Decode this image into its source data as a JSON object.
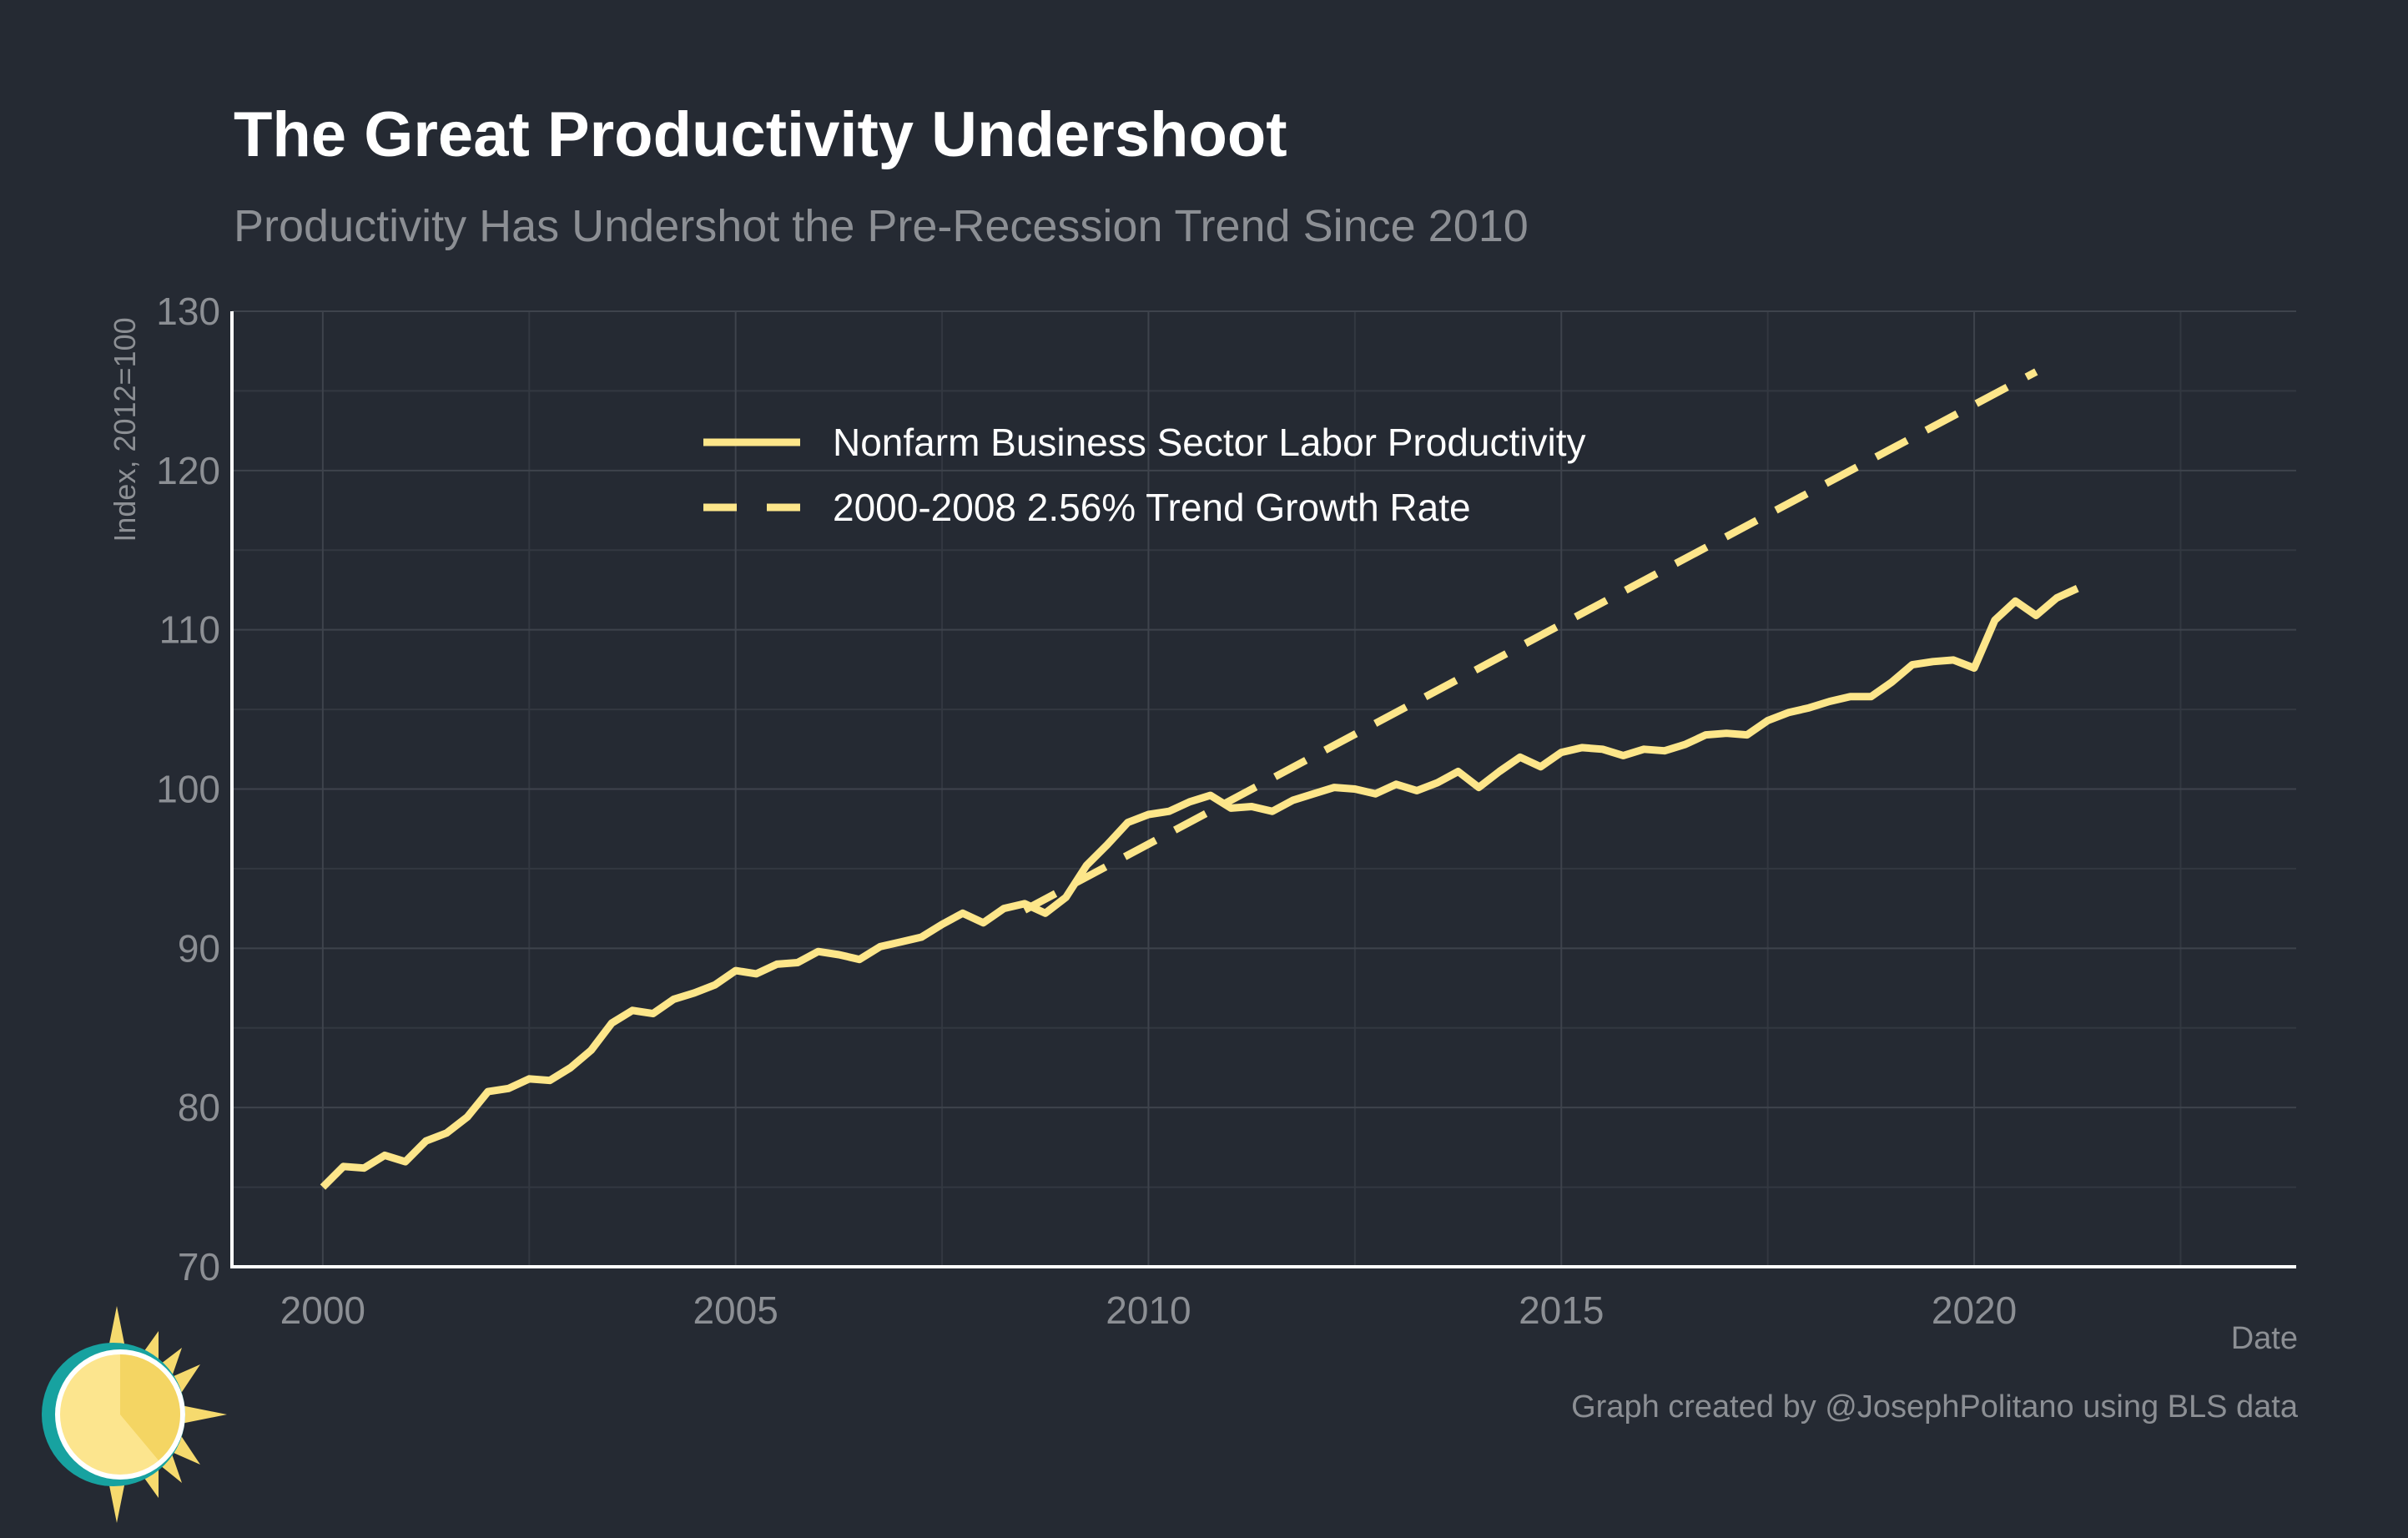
{
  "title": "The Great Productivity Undershoot",
  "subtitle": "Productivity Has Undershot the Pre-Recession Trend Since 2010",
  "caption": "Graph created by @JosephPolitano using BLS data",
  "colors": {
    "background": "#252a33",
    "series": "#fde68a",
    "grid": "#3e434c",
    "axis": "#ffffff",
    "text_muted": "#8c8f94"
  },
  "chart_data": {
    "type": "line",
    "xlabel": "Date",
    "ylabel": "Index, 2012=100",
    "xlim": [
      1998.9,
      2023.9
    ],
    "ylim": [
      70,
      130
    ],
    "x_ticks": [
      2000,
      2005,
      2010,
      2015,
      2020
    ],
    "x_tick_labels": [
      "2000",
      "2005",
      "2010",
      "2015",
      "2020"
    ],
    "y_ticks": [
      70,
      80,
      90,
      100,
      110,
      120,
      130
    ],
    "y_tick_labels": [
      "70",
      "80",
      "90",
      "100",
      "110",
      "120",
      "130"
    ],
    "grid": true,
    "legend_position": "top-left",
    "series": [
      {
        "name": "Nonfarm Business Sector Labor Productivity",
        "style": "solid",
        "x": [
          2000.0,
          2000.25,
          2000.5,
          2000.75,
          2001.0,
          2001.25,
          2001.5,
          2001.75,
          2002.0,
          2002.25,
          2002.5,
          2002.75,
          2003.0,
          2003.25,
          2003.5,
          2003.75,
          2004.0,
          2004.25,
          2004.5,
          2004.75,
          2005.0,
          2005.25,
          2005.5,
          2005.75,
          2006.0,
          2006.25,
          2006.5,
          2006.75,
          2007.0,
          2007.25,
          2007.5,
          2007.75,
          2008.0,
          2008.25,
          2008.5,
          2008.75,
          2009.0,
          2009.25,
          2009.5,
          2009.75,
          2010.0,
          2010.25,
          2010.5,
          2010.75,
          2011.0,
          2011.25,
          2011.5,
          2011.75,
          2012.0,
          2012.25,
          2012.5,
          2012.75,
          2013.0,
          2013.25,
          2013.5,
          2013.75,
          2014.0,
          2014.25,
          2014.5,
          2014.75,
          2015.0,
          2015.25,
          2015.5,
          2015.75,
          2016.0,
          2016.25,
          2016.5,
          2016.75,
          2017.0,
          2017.25,
          2017.5,
          2017.75,
          2018.0,
          2018.25,
          2018.5,
          2018.75,
          2019.0,
          2019.25,
          2019.5,
          2019.75,
          2020.0,
          2020.25,
          2020.5,
          2020.75,
          2021.0,
          2021.25
        ],
        "values": [
          75.0,
          76.3,
          76.2,
          77.0,
          76.6,
          77.9,
          78.4,
          79.4,
          81.0,
          81.2,
          81.8,
          81.7,
          82.5,
          83.6,
          85.3,
          86.1,
          85.9,
          86.8,
          87.2,
          87.7,
          88.6,
          88.4,
          89.0,
          89.1,
          89.8,
          89.6,
          89.3,
          90.1,
          90.4,
          90.7,
          91.5,
          92.2,
          91.6,
          92.5,
          92.8,
          92.2,
          93.2,
          95.2,
          96.5,
          97.9,
          98.4,
          98.6,
          99.2,
          99.6,
          98.8,
          98.9,
          98.6,
          99.3,
          99.7,
          100.1,
          100.0,
          99.7,
          100.3,
          99.9,
          100.4,
          101.1,
          100.1,
          101.1,
          102.0,
          101.4,
          102.3,
          102.6,
          102.5,
          102.1,
          102.5,
          102.4,
          102.8,
          103.4,
          103.5,
          103.4,
          104.3,
          104.8,
          105.1,
          105.5,
          105.8,
          105.8,
          106.7,
          107.8,
          108.0,
          108.1,
          107.6,
          110.6,
          111.8,
          110.9,
          112.0,
          112.6
        ]
      },
      {
        "name": "2000-2008 2.56% Trend Growth Rate",
        "style": "dashed",
        "x": [
          2008.5,
          2020.75
        ],
        "values": [
          92.4,
          126.2
        ]
      }
    ]
  }
}
